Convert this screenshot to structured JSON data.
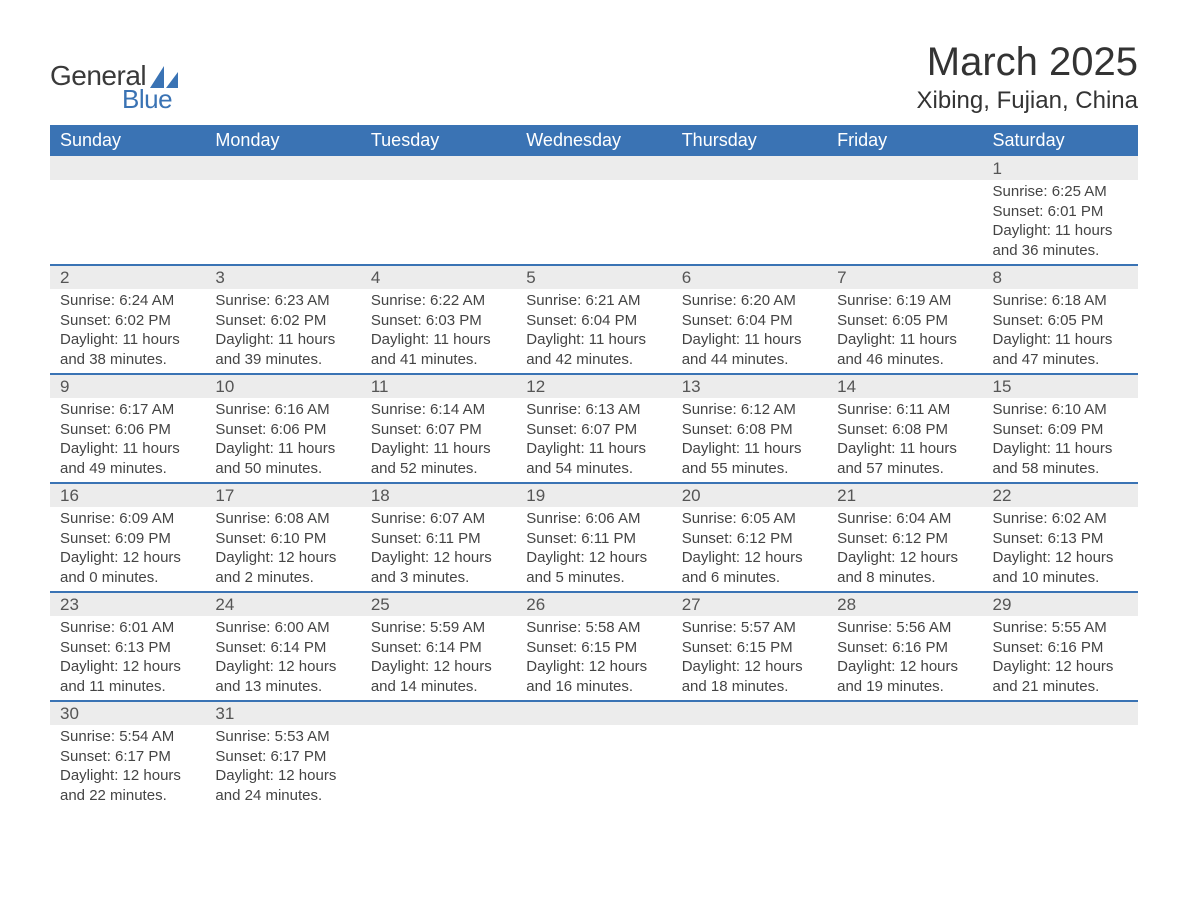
{
  "brand": {
    "name_part1": "General",
    "name_part2": "Blue",
    "dark_color": "#3a3a3a",
    "blue_color": "#3a73b4"
  },
  "title": {
    "month": "March 2025",
    "location": "Xibing, Fujian, China",
    "title_fontsize": 40,
    "location_fontsize": 24
  },
  "colors": {
    "header_bg": "#3a73b4",
    "header_text": "#ffffff",
    "daynum_bg": "#ececec",
    "row_divider": "#3a73b4",
    "body_text": "#444444",
    "page_bg": "#ffffff"
  },
  "layout": {
    "columns": 7,
    "column_headers_fontsize": 18,
    "daynum_fontsize": 17,
    "detail_fontsize": 15
  },
  "columns": [
    "Sunday",
    "Monday",
    "Tuesday",
    "Wednesday",
    "Thursday",
    "Friday",
    "Saturday"
  ],
  "weeks": [
    {
      "nums": [
        "",
        "",
        "",
        "",
        "",
        "",
        "1"
      ],
      "details": [
        "",
        "",
        "",
        "",
        "",
        "",
        "Sunrise: 6:25 AM\nSunset: 6:01 PM\nDaylight: 11 hours and 36 minutes."
      ]
    },
    {
      "nums": [
        "2",
        "3",
        "4",
        "5",
        "6",
        "7",
        "8"
      ],
      "details": [
        "Sunrise: 6:24 AM\nSunset: 6:02 PM\nDaylight: 11 hours and 38 minutes.",
        "Sunrise: 6:23 AM\nSunset: 6:02 PM\nDaylight: 11 hours and 39 minutes.",
        "Sunrise: 6:22 AM\nSunset: 6:03 PM\nDaylight: 11 hours and 41 minutes.",
        "Sunrise: 6:21 AM\nSunset: 6:04 PM\nDaylight: 11 hours and 42 minutes.",
        "Sunrise: 6:20 AM\nSunset: 6:04 PM\nDaylight: 11 hours and 44 minutes.",
        "Sunrise: 6:19 AM\nSunset: 6:05 PM\nDaylight: 11 hours and 46 minutes.",
        "Sunrise: 6:18 AM\nSunset: 6:05 PM\nDaylight: 11 hours and 47 minutes."
      ]
    },
    {
      "nums": [
        "9",
        "10",
        "11",
        "12",
        "13",
        "14",
        "15"
      ],
      "details": [
        "Sunrise: 6:17 AM\nSunset: 6:06 PM\nDaylight: 11 hours and 49 minutes.",
        "Sunrise: 6:16 AM\nSunset: 6:06 PM\nDaylight: 11 hours and 50 minutes.",
        "Sunrise: 6:14 AM\nSunset: 6:07 PM\nDaylight: 11 hours and 52 minutes.",
        "Sunrise: 6:13 AM\nSunset: 6:07 PM\nDaylight: 11 hours and 54 minutes.",
        "Sunrise: 6:12 AM\nSunset: 6:08 PM\nDaylight: 11 hours and 55 minutes.",
        "Sunrise: 6:11 AM\nSunset: 6:08 PM\nDaylight: 11 hours and 57 minutes.",
        "Sunrise: 6:10 AM\nSunset: 6:09 PM\nDaylight: 11 hours and 58 minutes."
      ]
    },
    {
      "nums": [
        "16",
        "17",
        "18",
        "19",
        "20",
        "21",
        "22"
      ],
      "details": [
        "Sunrise: 6:09 AM\nSunset: 6:09 PM\nDaylight: 12 hours and 0 minutes.",
        "Sunrise: 6:08 AM\nSunset: 6:10 PM\nDaylight: 12 hours and 2 minutes.",
        "Sunrise: 6:07 AM\nSunset: 6:11 PM\nDaylight: 12 hours and 3 minutes.",
        "Sunrise: 6:06 AM\nSunset: 6:11 PM\nDaylight: 12 hours and 5 minutes.",
        "Sunrise: 6:05 AM\nSunset: 6:12 PM\nDaylight: 12 hours and 6 minutes.",
        "Sunrise: 6:04 AM\nSunset: 6:12 PM\nDaylight: 12 hours and 8 minutes.",
        "Sunrise: 6:02 AM\nSunset: 6:13 PM\nDaylight: 12 hours and 10 minutes."
      ]
    },
    {
      "nums": [
        "23",
        "24",
        "25",
        "26",
        "27",
        "28",
        "29"
      ],
      "details": [
        "Sunrise: 6:01 AM\nSunset: 6:13 PM\nDaylight: 12 hours and 11 minutes.",
        "Sunrise: 6:00 AM\nSunset: 6:14 PM\nDaylight: 12 hours and 13 minutes.",
        "Sunrise: 5:59 AM\nSunset: 6:14 PM\nDaylight: 12 hours and 14 minutes.",
        "Sunrise: 5:58 AM\nSunset: 6:15 PM\nDaylight: 12 hours and 16 minutes.",
        "Sunrise: 5:57 AM\nSunset: 6:15 PM\nDaylight: 12 hours and 18 minutes.",
        "Sunrise: 5:56 AM\nSunset: 6:16 PM\nDaylight: 12 hours and 19 minutes.",
        "Sunrise: 5:55 AM\nSunset: 6:16 PM\nDaylight: 12 hours and 21 minutes."
      ]
    },
    {
      "nums": [
        "30",
        "31",
        "",
        "",
        "",
        "",
        ""
      ],
      "details": [
        "Sunrise: 5:54 AM\nSunset: 6:17 PM\nDaylight: 12 hours and 22 minutes.",
        "Sunrise: 5:53 AM\nSunset: 6:17 PM\nDaylight: 12 hours and 24 minutes.",
        "",
        "",
        "",
        "",
        ""
      ]
    }
  ]
}
